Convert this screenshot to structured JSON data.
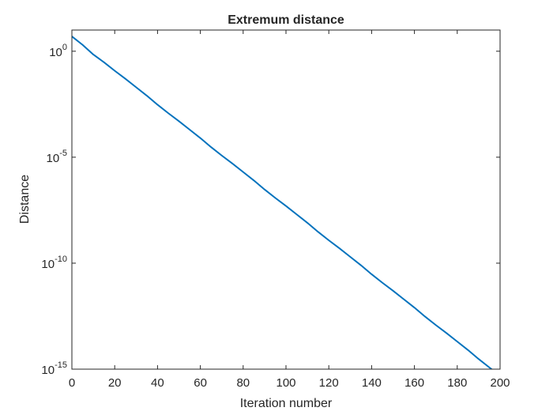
{
  "chart_data": {
    "type": "line",
    "title": "Extremum distance",
    "xlabel": "Iteration number",
    "ylabel": "Distance",
    "xlim": [
      0,
      200
    ],
    "ylim": [
      1e-15,
      10
    ],
    "yscale": "log",
    "grid": false,
    "x_ticks": [
      0,
      20,
      40,
      60,
      80,
      100,
      120,
      140,
      160,
      180,
      200
    ],
    "x_tick_labels": [
      "0",
      "20",
      "40",
      "60",
      "80",
      "100",
      "120",
      "140",
      "160",
      "180",
      "200"
    ],
    "y_ticks": [
      1,
      1e-05,
      1e-10,
      1e-15
    ],
    "y_tick_labels": [
      {
        "base": "10",
        "exp": "0"
      },
      {
        "base": "10",
        "exp": "-5"
      },
      {
        "base": "10",
        "exp": "-10"
      },
      {
        "base": "10",
        "exp": "-15"
      }
    ],
    "series": [
      {
        "color": "#0072BD",
        "x": [
          0,
          5,
          10,
          15,
          20,
          25,
          30,
          35,
          40,
          45,
          50,
          55,
          60,
          65,
          70,
          75,
          80,
          85,
          90,
          95,
          100,
          105,
          110,
          115,
          120,
          125,
          130,
          135,
          140,
          145,
          150,
          155,
          160,
          165,
          170,
          175,
          180,
          185,
          190,
          195,
          200
        ],
        "y": [
          5,
          2,
          0.7,
          0.3,
          0.12,
          0.05,
          0.02,
          0.008,
          0.003,
          0.0012,
          0.0005,
          0.0002,
          8e-05,
          3e-05,
          1.2e-05,
          5e-06,
          2e-06,
          8e-07,
          3e-07,
          1.2e-07,
          5e-08,
          2e-08,
          8e-09,
          3e-09,
          1.2e-09,
          5e-10,
          2e-10,
          8e-11,
          3e-11,
          1.2e-11,
          5e-12,
          2e-12,
          8e-13,
          3e-13,
          1.2e-13,
          5e-14,
          2e-14,
          8e-15,
          3e-15,
          1.2e-15,
          5e-16
        ]
      }
    ]
  }
}
